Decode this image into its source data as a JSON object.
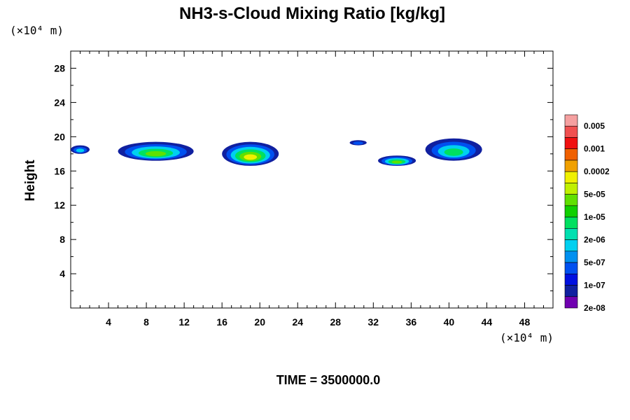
{
  "chart_data": {
    "type": "heatmap",
    "title": "NH3-s-Cloud Mixing Ratio [kg/kg]",
    "ylabel": "Height",
    "x_unit_label": "(×10⁴ m)",
    "y_unit_label": "(×10⁴ m)",
    "xlim": [
      0,
      51
    ],
    "ylim": [
      0,
      30
    ],
    "x_ticks": [
      4,
      8,
      12,
      16,
      20,
      24,
      28,
      32,
      36,
      40,
      44,
      48
    ],
    "y_ticks": [
      4,
      8,
      12,
      16,
      20,
      24,
      28
    ],
    "colorbar": {
      "labels": [
        "0.005",
        "0.001",
        "0.0002",
        "5e-05",
        "1e-05",
        "2e-06",
        "5e-07",
        "1e-07",
        "2e-08"
      ],
      "colors": [
        "#f5a0a0",
        "#f05050",
        "#f01010",
        "#f06000",
        "#f0a000",
        "#f0f000",
        "#c0f000",
        "#60e000",
        "#10d000",
        "#00e060",
        "#00e0b0",
        "#00d0f0",
        "#0090f0",
        "#0050f0",
        "#0010e0",
        "#1020a0",
        "#7000b0"
      ]
    },
    "clouds": [
      {
        "x": [
          0,
          2
        ],
        "y": [
          18.0,
          19.0
        ],
        "peak": "5e-07"
      },
      {
        "x": [
          5,
          13
        ],
        "y": [
          17.2,
          19.4
        ],
        "peak": "5e-05"
      },
      {
        "x": [
          16,
          22
        ],
        "y": [
          16.6,
          19.4
        ],
        "peak": "0.0002"
      },
      {
        "x": [
          29.5,
          31.3
        ],
        "y": [
          19.0,
          19.6
        ],
        "peak": "1e-07"
      },
      {
        "x": [
          32.5,
          36.5
        ],
        "y": [
          16.6,
          17.8
        ],
        "peak": "5e-05"
      },
      {
        "x": [
          37.5,
          43.5
        ],
        "y": [
          17.2,
          19.8
        ],
        "peak": "1e-05"
      }
    ]
  },
  "footer": {
    "time_label": "TIME = 3500000.0"
  }
}
